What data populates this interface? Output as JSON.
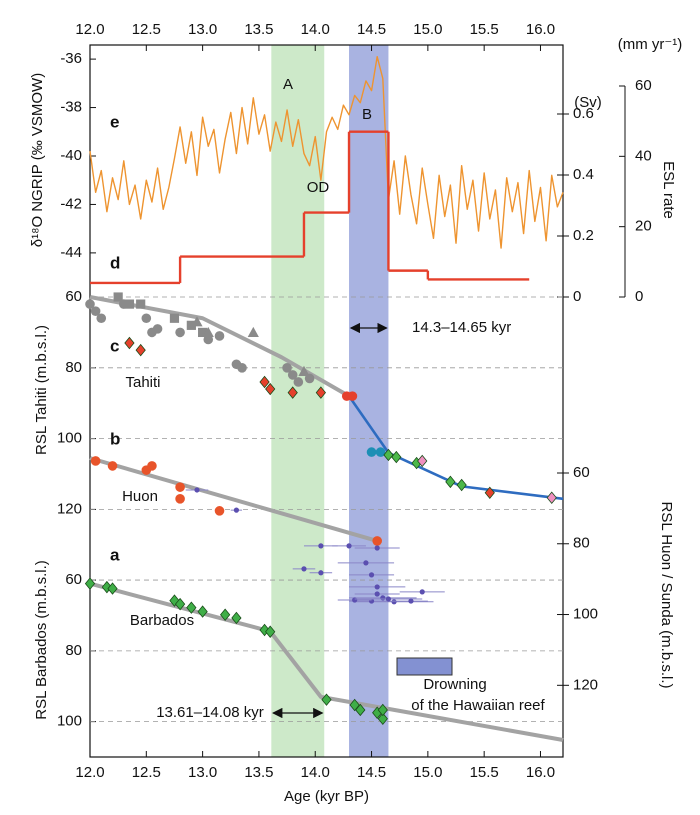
{
  "chart_data": {
    "type": "multi-panel",
    "xlabel": "Age (kyr BP)",
    "xlim": [
      12.0,
      16.2
    ],
    "xticks": [
      {
        "value": 12,
        "label": "12.0"
      },
      12.5,
      {
        "value": 13,
        "label": "13.0"
      },
      13.5,
      {
        "value": 14,
        "label": "14.0"
      },
      14.5,
      {
        "value": 15,
        "label": "15.0"
      },
      15.5,
      {
        "value": 16,
        "label": "16.0"
      }
    ],
    "bands": [
      {
        "x": [
          13.61,
          14.08
        ],
        "color": "#cde9c9"
      },
      {
        "x": [
          14.3,
          14.65
        ],
        "color": "#a9b3e1"
      }
    ],
    "annotations": [
      "A",
      "B",
      "OD",
      "14.3–14.65 kyr",
      "13.61–14.08 kyr",
      "Drowning",
      "of the Hawaiian reef",
      "Tahiti",
      "Huon",
      "Barbados"
    ],
    "panels": [
      {
        "type": "line",
        "panel_label": "e",
        "ylabel": "δ¹⁸O NGRIP (‰ VSMOW)",
        "ylim": [
          -44.5,
          -35.5
        ],
        "yticks": [
          -36,
          -38,
          -40,
          -42,
          -44
        ],
        "series": [
          {
            "style": "line",
            "color": "#ee9430",
            "x": [
              12.0,
              12.05,
              12.1,
              12.15,
              12.2,
              12.25,
              12.3,
              12.35,
              12.4,
              12.45,
              12.5,
              12.55,
              12.6,
              12.65,
              12.7,
              12.75,
              12.8,
              12.85,
              12.9,
              12.95,
              13.0,
              13.05,
              13.1,
              13.15,
              13.2,
              13.25,
              13.3,
              13.35,
              13.4,
              13.45,
              13.5,
              13.55,
              13.6,
              13.65,
              13.7,
              13.75,
              13.8,
              13.85,
              13.9,
              13.95,
              14.0,
              14.05,
              14.1,
              14.15,
              14.2,
              14.25,
              14.3,
              14.35,
              14.4,
              14.45,
              14.5,
              14.55,
              14.6,
              14.65,
              14.7,
              14.75,
              14.8,
              14.85,
              14.9,
              14.95,
              15.0,
              15.05,
              15.1,
              15.15,
              15.2,
              15.25,
              15.3,
              15.35,
              15.4,
              15.45,
              15.5,
              15.55,
              15.6,
              15.65,
              15.7,
              15.75,
              15.8,
              15.85,
              15.9,
              15.95,
              16.0,
              16.05,
              16.1,
              16.15,
              16.2
            ],
            "values": [
              -39.8,
              -41.5,
              -40.6,
              -42.3,
              -40.9,
              -41.8,
              -40.2,
              -42.0,
              -41.2,
              -42.6,
              -41.0,
              -41.9,
              -40.5,
              -42.2,
              -41.3,
              -40.1,
              -38.8,
              -40.3,
              -39.0,
              -40.8,
              -38.4,
              -39.6,
              -38.9,
              -40.7,
              -39.3,
              -38.2,
              -39.9,
              -38.0,
              -39.5,
              -37.6,
              -39.1,
              -38.3,
              -39.8,
              -38.6,
              -39.4,
              -38.1,
              -39.6,
              -38.5,
              -39.9,
              -40.4,
              -39.2,
              -41.0,
              -39.0,
              -38.4,
              -38.9,
              -37.9,
              -38.3,
              -37.5,
              -37.8,
              -36.9,
              -37.3,
              -35.9,
              -36.8,
              -41.8,
              -40.2,
              -42.4,
              -40.0,
              -41.6,
              -42.8,
              -40.5,
              -42.0,
              -43.4,
              -40.8,
              -42.5,
              -41.2,
              -43.6,
              -40.4,
              -42.2,
              -41.0,
              -43.1,
              -40.7,
              -42.6,
              -41.4,
              -43.8,
              -40.9,
              -42.3,
              -41.1,
              -43.2,
              -40.6,
              -42.7,
              -41.3,
              -43.5,
              -40.8,
              -42.1,
              -41.5
            ]
          }
        ]
      },
      {
        "type": "step",
        "panel_label": "d",
        "ylabel": "ESL rate",
        "yunit": "(mm yr⁻¹)",
        "y2label": "(Sv)",
        "ylim": [
          0,
          60
        ],
        "yticks": [
          0,
          20,
          40,
          60
        ],
        "y2lim": [
          0,
          0.6
        ],
        "y2ticks": [
          0,
          0.2,
          0.4,
          0.6
        ],
        "series": [
          {
            "style": "step",
            "color": "#e5402c",
            "bins": [
              12.0,
              12.8,
              13.9,
              14.3,
              14.65,
              15.0,
              15.9
            ],
            "values": [
              4,
              11.5,
              24,
              47,
              7.5,
              5
            ]
          }
        ]
      },
      {
        "type": "scatter",
        "panel_label": "c",
        "panel_label2": "b",
        "inverted": true,
        "ylabel": "RSL Tahiti (m.b.s.l.)",
        "ylim": [
          57,
          130
        ],
        "yticks": [
          60,
          80,
          100,
          120
        ],
        "grid": true,
        "y2label": "RSL Huon / Sunda (m.b.s.l.)",
        "y2lim": [
          50,
          125
        ],
        "y2ticks": [
          60,
          80,
          100,
          120
        ],
        "series": [
          {
            "style": "line",
            "color": "#a3a3a3",
            "x": [
              12.0,
              13.0,
              13.7,
              14.3
            ],
            "values": [
              60,
              66,
              77,
              88
            ]
          },
          {
            "style": "line",
            "color": "#2e6cc0",
            "x": [
              14.3,
              14.65,
              15.3,
              16.2
            ],
            "values": [
              88,
              104,
              113.5,
              117
            ]
          },
          {
            "style": "line",
            "color": "#a3a3a3",
            "axis": "y2",
            "x": [
              12.0,
              14.55
            ],
            "values": [
              55.8,
              79.2
            ]
          },
          {
            "style": "scatter",
            "marker": "circle",
            "color": "#8a8a8a",
            "x": [
              12.0,
              12.05,
              12.1,
              12.3,
              12.5,
              12.55,
              12.6,
              12.8,
              13.05,
              13.15,
              13.3,
              13.35,
              13.75,
              13.8,
              13.85,
              13.95
            ],
            "values": [
              62,
              64,
              66,
              62,
              66,
              70,
              69,
              70,
              72,
              71,
              79,
              80,
              80,
              82,
              84,
              83
            ]
          },
          {
            "style": "scatter",
            "marker": "square",
            "color": "#8a8a8a",
            "x": [
              12.25,
              12.35,
              12.45,
              12.75,
              12.9,
              13.0
            ],
            "values": [
              60,
              62,
              62,
              66,
              68,
              70
            ]
          },
          {
            "style": "scatter",
            "marker": "triangle",
            "color": "#8a8a8a",
            "x": [
              12.95,
              13.05,
              13.45,
              13.9
            ],
            "values": [
              67,
              70,
              70,
              81
            ]
          },
          {
            "style": "scatter",
            "marker": "diamond",
            "color": "#e5402c",
            "x": [
              12.35,
              12.45,
              13.55,
              13.6,
              13.8,
              14.05
            ],
            "values": [
              73,
              75,
              84,
              86,
              87,
              87
            ]
          },
          {
            "style": "scatter",
            "marker": "circle",
            "color": "#e5402c",
            "x": [
              14.28,
              14.33
            ],
            "values": [
              88,
              88
            ]
          },
          {
            "style": "scatter",
            "marker": "circle",
            "color": "#e8542a",
            "axis": "y2",
            "x": [
              12.05,
              12.2,
              12.5,
              12.55,
              12.8,
              12.8,
              13.15,
              14.55
            ],
            "values": [
              56.6,
              58,
              59.2,
              58,
              64,
              67.3,
              70.7,
              79.2
            ]
          },
          {
            "style": "scatter",
            "marker": "dot",
            "color": "#5b4fb0",
            "axis": "y2",
            "x": [
              12.95,
              13.3,
              14.05,
              14.3,
              14.45,
              14.55,
              13.9,
              14.05,
              14.5,
              14.55,
              14.6,
              14.7,
              14.5,
              14.35,
              14.65,
              14.95,
              14.85,
              14.55
            ],
            "values": [
              64.8,
              70.5,
              80.6,
              80.6,
              85.4,
              81.2,
              87.1,
              88.2,
              88.8,
              92.2,
              95.3,
              96.4,
              96.2,
              95.9,
              95.6,
              93.6,
              96.2,
              94.2
            ],
            "xerr": [
              0.1,
              0.05,
              0.15,
              0.15,
              0.25,
              0.2,
              0.1,
              0.1,
              0.2,
              0.25,
              0.3,
              0.35,
              0.2,
              0.15,
              0.3,
              0.2,
              0.15,
              0.2
            ]
          },
          {
            "style": "scatter",
            "marker": "circle",
            "color": "#1c8fb5",
            "axis": "y2",
            "x": [
              14.5,
              14.58
            ],
            "values": [
              54.1,
              54.1
            ]
          },
          {
            "style": "scatter",
            "marker": "diamond",
            "color": "#4cb84a",
            "axis": "y2",
            "x": [
              14.65,
              14.72,
              14.9,
              15.2,
              15.3
            ],
            "values": [
              54.9,
              55.5,
              57.2,
              62.5,
              63.4
            ]
          },
          {
            "style": "scatter",
            "marker": "diamond",
            "color": "#ef8fc0",
            "axis": "y2",
            "x": [
              14.95,
              16.1
            ],
            "values": [
              56.6,
              67
            ]
          },
          {
            "style": "scatter",
            "marker": "diamond",
            "color": "#e5402c",
            "axis": "y2",
            "x": [
              15.55
            ],
            "values": [
              65.6
            ]
          }
        ]
      },
      {
        "type": "scatter",
        "panel_label": "a",
        "inverted": true,
        "ylabel": "RSL Barbados (m.b.s.l.)",
        "ylim": [
          45,
          110
        ],
        "yticks": [
          60,
          80,
          100
        ],
        "grid": true,
        "series": [
          {
            "style": "line",
            "color": "#a3a3a3",
            "x": [
              12.0,
              13.6,
              14.05,
              16.2
            ],
            "values": [
              61,
              74.5,
              93,
              105.2
            ]
          },
          {
            "style": "scatter",
            "marker": "diamond",
            "color": "#3fae47",
            "x": [
              12.0,
              12.15,
              12.2,
              12.75,
              12.8,
              12.9,
              13.0,
              13.2,
              13.3,
              13.55,
              13.6,
              14.1,
              14.35,
              14.4,
              14.55,
              14.6,
              14.6
            ],
            "values": [
              61,
              62,
              62.4,
              65.8,
              66.8,
              67.8,
              68.9,
              69.8,
              70.7,
              74.1,
              74.6,
              93.8,
              95.3,
              96.7,
              97.5,
              99.2,
              96.7
            ]
          }
        ]
      }
    ]
  }
}
